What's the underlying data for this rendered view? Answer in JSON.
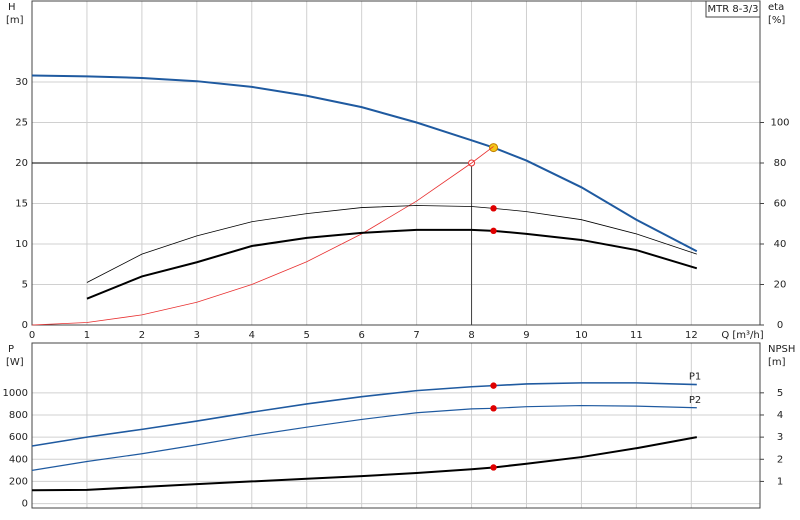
{
  "chart_data": [
    {
      "type": "line",
      "model_label": "MTR 8-3/3",
      "ylabel": "H",
      "yunit": "[m]",
      "y2label": "eta",
      "y2unit": "[%]",
      "xlabel": "Q [m³/h]",
      "x": [
        0,
        1,
        2,
        3,
        4,
        5,
        6,
        7,
        8,
        8.4,
        9,
        10,
        11,
        12.1
      ],
      "xlim": [
        0,
        13.25
      ],
      "xticks": [
        0,
        1,
        2,
        3,
        4,
        5,
        6,
        7,
        8,
        9,
        10,
        11,
        12
      ],
      "ylim": [
        0,
        40
      ],
      "yticks": [
        0,
        5,
        10,
        15,
        20,
        25,
        30
      ],
      "y2lim": [
        0,
        160
      ],
      "y2ticks": [
        0,
        20,
        40,
        60,
        80,
        100
      ],
      "grid": true,
      "marker_x": 8.4,
      "duty_point": {
        "x": 8,
        "y": 20
      },
      "series": [
        {
          "color": "#1f5aa0",
          "width": 2,
          "marker_color": "#f5c518",
          "values": [
            30.8,
            30.7,
            30.5,
            30.1,
            29.4,
            28.3,
            26.9,
            25.0,
            22.8,
            21.9,
            20.3,
            17.0,
            13.0,
            9.1
          ]
        },
        {
          "color": "#e83030",
          "width": 0.8,
          "values": [
            0,
            0.31,
            1.25,
            2.81,
            5,
            7.81,
            11.25,
            15.3,
            20,
            22.05,
            null,
            null,
            null,
            null
          ]
        },
        {
          "color": "#000000",
          "width": 0.8,
          "axis": "y2",
          "marker_color": "#e00000",
          "values": [
            null,
            21,
            35,
            44,
            51,
            55,
            58,
            59,
            58.5,
            57.6,
            56,
            52,
            45,
            35
          ]
        },
        {
          "color": "#000000",
          "width": 2,
          "axis": "y2",
          "marker_color": "#e00000",
          "values": [
            null,
            13,
            24,
            31,
            39,
            43,
            45.5,
            47,
            47,
            46.5,
            45,
            42,
            37,
            28
          ]
        }
      ]
    },
    {
      "type": "line",
      "ylabel": "P",
      "yunit": "[W]",
      "y2label": "NPSH",
      "y2unit": "[m]",
      "x": [
        0,
        1,
        2,
        3,
        4,
        5,
        6,
        7,
        8,
        8.4,
        9,
        10,
        11,
        12.1
      ],
      "xlim": [
        0,
        13.25
      ],
      "xticks": [
        0,
        1,
        2,
        3,
        4,
        5,
        6,
        7,
        8,
        9,
        10,
        11,
        12
      ],
      "ylim": [
        -40,
        1450
      ],
      "yticks": [
        0,
        200,
        400,
        600,
        800,
        1000
      ],
      "y2lim": [
        -0.2,
        7.25
      ],
      "y2ticks": [
        1,
        2,
        3,
        4,
        5
      ],
      "grid": true,
      "marker_x": 8.4,
      "series": [
        {
          "name": "P1",
          "color": "#1f5aa0",
          "width": 1.6,
          "marker_color": "#e00000",
          "values": [
            520,
            600,
            670,
            745,
            825,
            900,
            965,
            1020,
            1055,
            1065,
            1080,
            1090,
            1090,
            1075
          ]
        },
        {
          "name": "P2",
          "color": "#1f5aa0",
          "width": 1.2,
          "marker_color": "#e00000",
          "values": [
            300,
            380,
            450,
            530,
            615,
            690,
            760,
            820,
            855,
            860,
            875,
            885,
            880,
            865
          ]
        },
        {
          "color": "#000000",
          "width": 2,
          "axis": "y2",
          "marker_color": "#e00000",
          "values": [
            0.6,
            0.62,
            0.75,
            0.88,
            1.0,
            1.12,
            1.24,
            1.38,
            1.55,
            1.63,
            1.8,
            2.1,
            2.5,
            3.0
          ]
        }
      ]
    }
  ]
}
